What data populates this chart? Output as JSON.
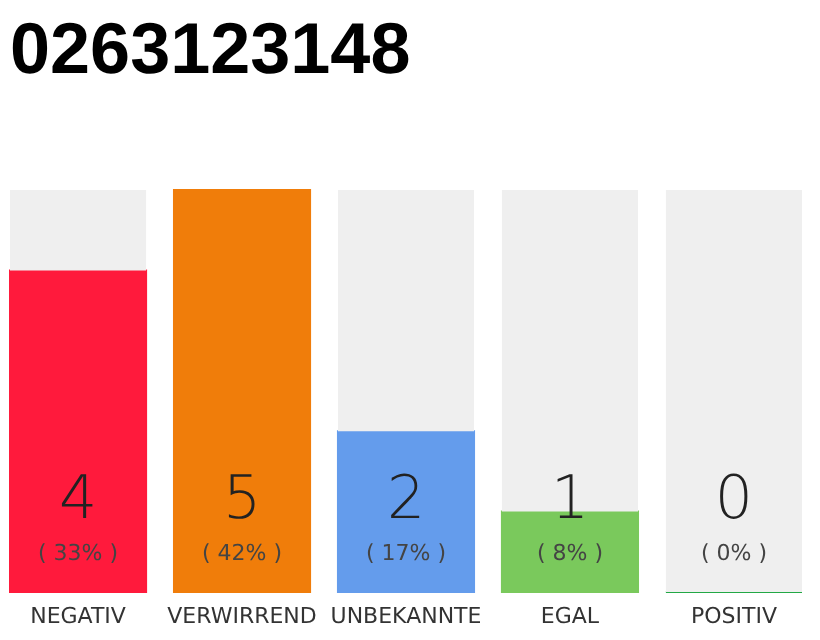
{
  "chart_data": {
    "type": "bar",
    "title": "0263123148",
    "stacked": true,
    "categories": [
      "NEGATIV",
      "VERWIRREND",
      "UNBEKANNTE",
      "EGAL",
      "POSITIV"
    ],
    "series": [
      {
        "colors": [
          "#ff1a3c",
          "#f07d0a",
          "#649cec",
          "#7ac95c",
          "#22a845"
        ],
        "values": [
          4,
          5,
          2,
          1,
          0
        ],
        "value_labels": [
          "4",
          "5",
          "2",
          "1",
          "0"
        ]
      },
      {
        "color": "#efefef",
        "values": [
          1,
          0,
          3,
          4,
          5
        ]
      }
    ],
    "annotations": [
      "( 33% )",
      "( 42% )",
      "( 17% )",
      "( 8% )",
      "( 0% )"
    ]
  }
}
